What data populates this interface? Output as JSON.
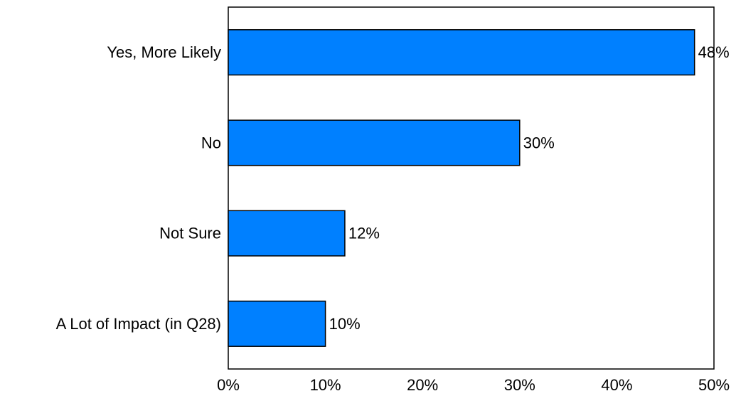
{
  "chart_data": {
    "type": "bar",
    "orientation": "horizontal",
    "categories": [
      "Yes, More Likely",
      "No",
      "Not Sure",
      "A Lot of Impact (in Q28)"
    ],
    "values": [
      48,
      30,
      12,
      10
    ],
    "value_labels": [
      "48%",
      "30%",
      "12%",
      "10%"
    ],
    "xlim": [
      0,
      50
    ],
    "xticks": [
      0,
      10,
      20,
      30,
      40,
      50
    ],
    "xtick_labels": [
      "0%",
      "10%",
      "20%",
      "30%",
      "40%",
      "50%"
    ],
    "title": "",
    "xlabel": "",
    "ylabel": "",
    "grid": false,
    "bar_color": "#0080ff",
    "bar_edge_color": "#000000"
  }
}
